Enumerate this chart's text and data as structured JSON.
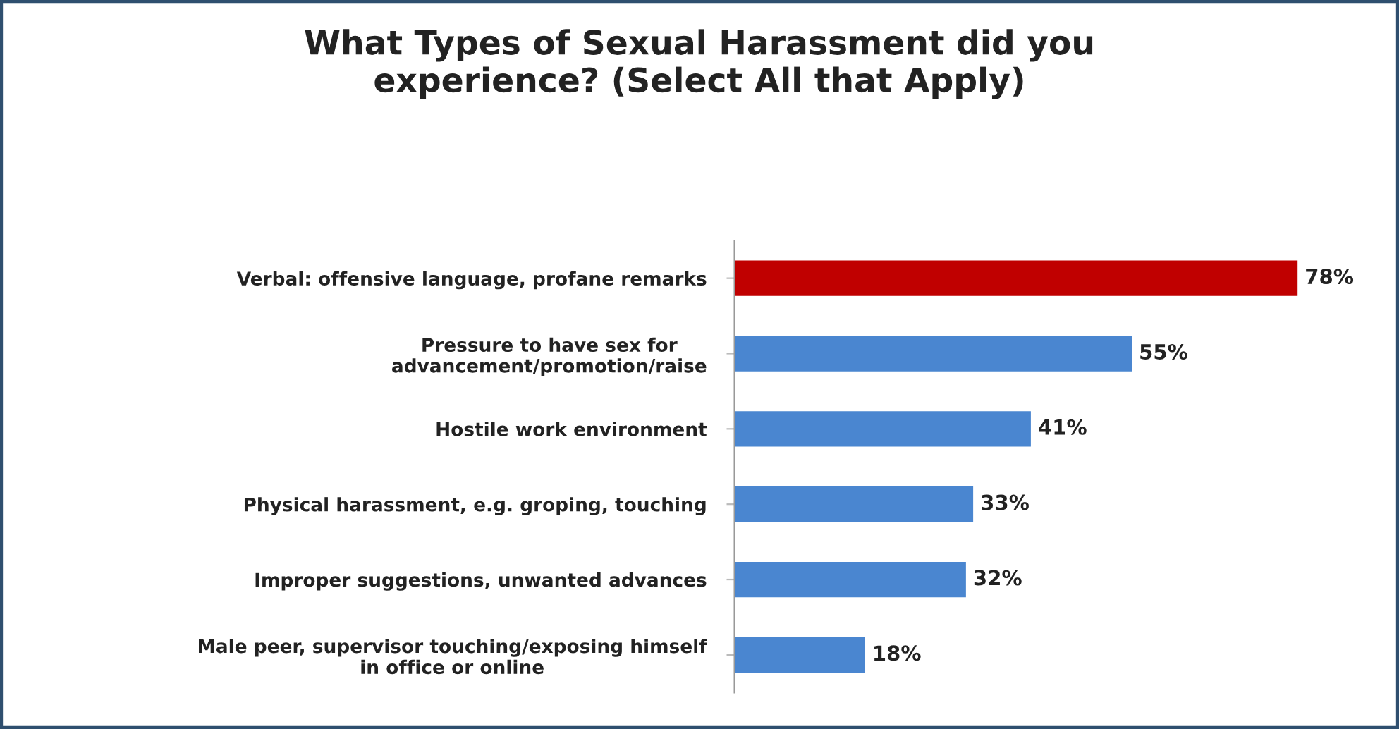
{
  "chart_data": {
    "type": "bar",
    "orientation": "horizontal",
    "title": "What Types of Sexual Harassment did you\nexperience? (Select All that Apply)",
    "categories": [
      "Verbal: offensive language, profane remarks",
      "Pressure to have sex for\nadvancement/promotion/raise",
      "Hostile work environment",
      "Physical harassment, e.g. groping, touching",
      "Improper suggestions, unwanted advances",
      "Male peer, supervisor touching/exposing himself\nin office or online"
    ],
    "values": [
      78,
      55,
      41,
      33,
      32,
      18
    ],
    "colors": [
      "#c00000",
      "#4a86d0",
      "#4a86d0",
      "#4a86d0",
      "#4a86d0",
      "#4a86d0"
    ],
    "value_labels": [
      "78%",
      "55%",
      "41%",
      "33%",
      "32%",
      "18%"
    ],
    "grid": false,
    "legend": false
  }
}
